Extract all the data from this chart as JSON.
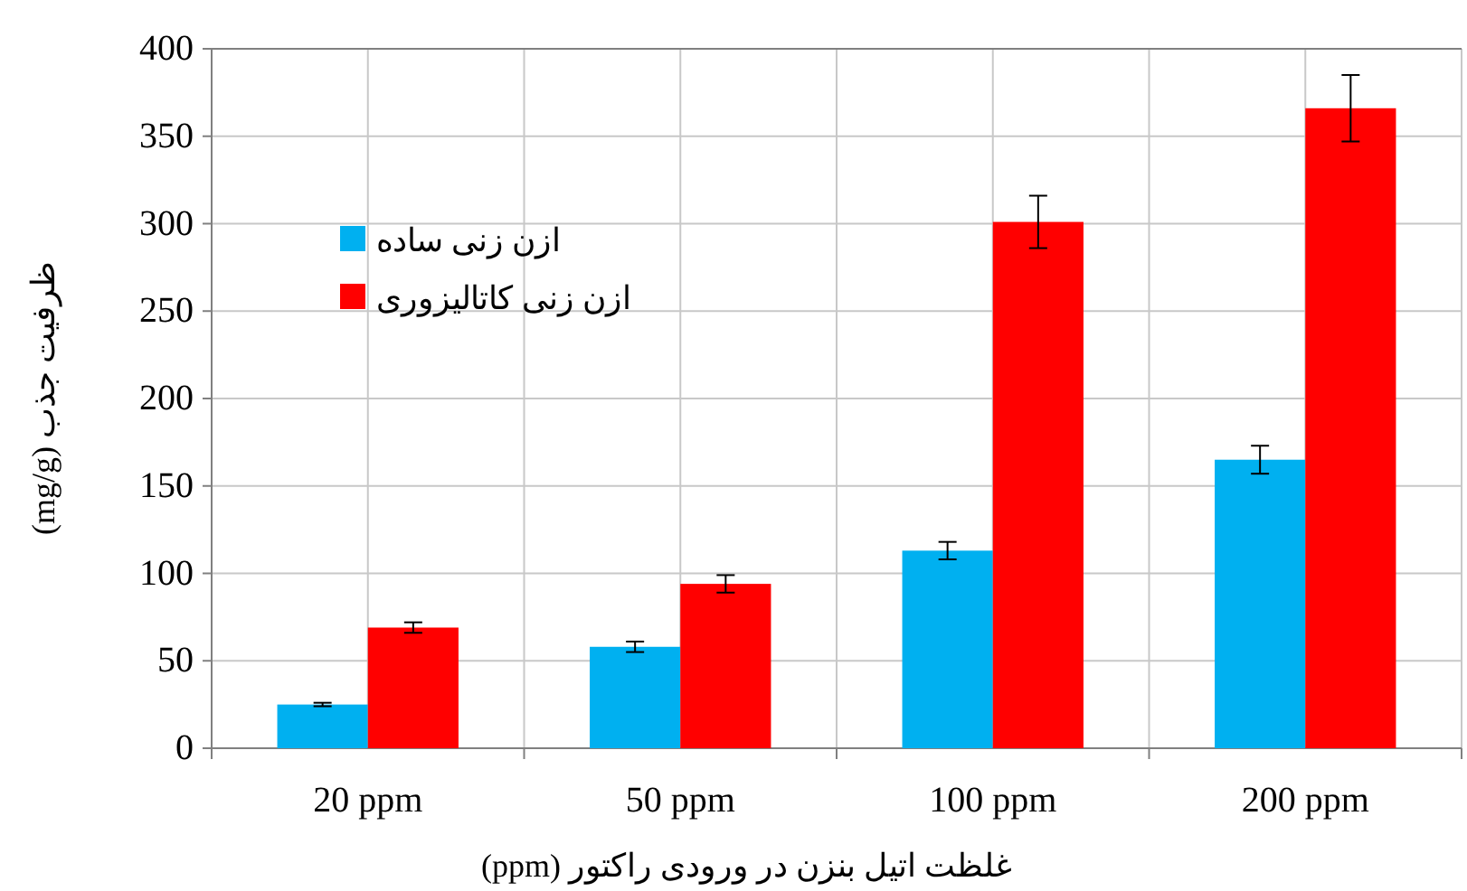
{
  "chart_data": {
    "type": "bar",
    "xlabel": "غلظت اتیل بنزن در ورودی راکتور (ppm)",
    "ylabel": "ظرفیت جذب  (mg/g)",
    "categories": [
      "20 ppm",
      "50 ppm",
      "100 ppm",
      "200 ppm"
    ],
    "series": [
      {
        "name": "ازن زنی ساده",
        "color": "#00b0f0",
        "values": [
          25,
          58,
          113,
          165
        ],
        "errors": [
          1,
          3,
          5,
          8
        ]
      },
      {
        "name": "ازن زنی کاتالیزوری",
        "color": "#ff0000",
        "values": [
          69,
          94,
          301,
          366
        ],
        "errors": [
          3,
          5,
          15,
          19
        ]
      }
    ],
    "ylim": [
      0,
      400
    ],
    "yticks": [
      0,
      50,
      100,
      150,
      200,
      250,
      300,
      350,
      400
    ],
    "grid": true,
    "legend": "top left"
  }
}
